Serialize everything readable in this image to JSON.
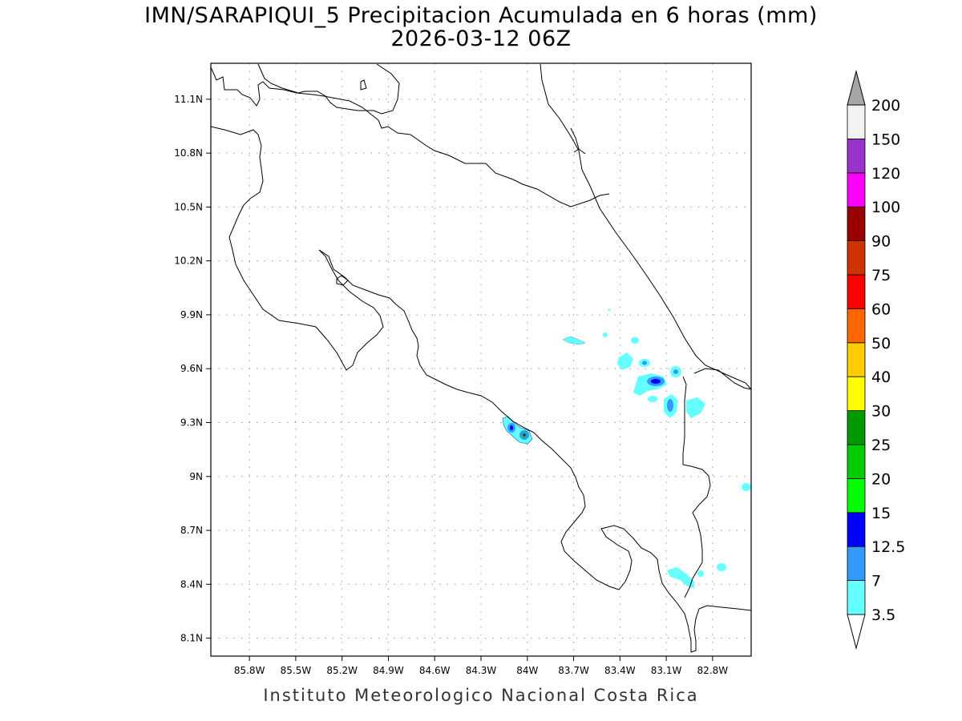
{
  "title": "IMN/SARAPIQUI_5 Precipitacion Acumulada en 6 horas (mm)",
  "subtitle": "2026-03-12 06Z",
  "footer": "Instituto Meteorologico Nacional Costa Rica",
  "map": {
    "lon_range": [
      -86.05,
      -82.55
    ],
    "lat_range": [
      8.0,
      11.3
    ],
    "lon_ticks": [
      "85.8W",
      "85.5W",
      "85.2W",
      "84.9W",
      "84.6W",
      "84.3W",
      "84W",
      "83.7W",
      "83.4W",
      "83.1W",
      "82.8W"
    ],
    "lat_ticks": [
      "8.1N",
      "8.4N",
      "8.7N",
      "9N",
      "9.3N",
      "9.6N",
      "9.9N",
      "10.2N",
      "10.5N",
      "10.8N",
      "11.1N"
    ],
    "grid": true
  },
  "legend": {
    "levels": [
      {
        "label": "3.5",
        "color": "#66ffff"
      },
      {
        "label": "7",
        "color": "#3399ff"
      },
      {
        "label": "12.5",
        "color": "#0000ff"
      },
      {
        "label": "15",
        "color": "#00ff00"
      },
      {
        "label": "20",
        "color": "#00cc00"
      },
      {
        "label": "25",
        "color": "#009900"
      },
      {
        "label": "30",
        "color": "#ffff00"
      },
      {
        "label": "40",
        "color": "#ffcc00"
      },
      {
        "label": "50",
        "color": "#ff6600"
      },
      {
        "label": "60",
        "color": "#ff0000"
      },
      {
        "label": "75",
        "color": "#cc3300"
      },
      {
        "label": "90",
        "color": "#990000"
      },
      {
        "label": "100",
        "color": "#ff00ff"
      },
      {
        "label": "120",
        "color": "#9933cc"
      },
      {
        "label": "150",
        "color": "#f2f2f2"
      },
      {
        "label": "200",
        "color": "#a6a6a6"
      }
    ]
  }
}
